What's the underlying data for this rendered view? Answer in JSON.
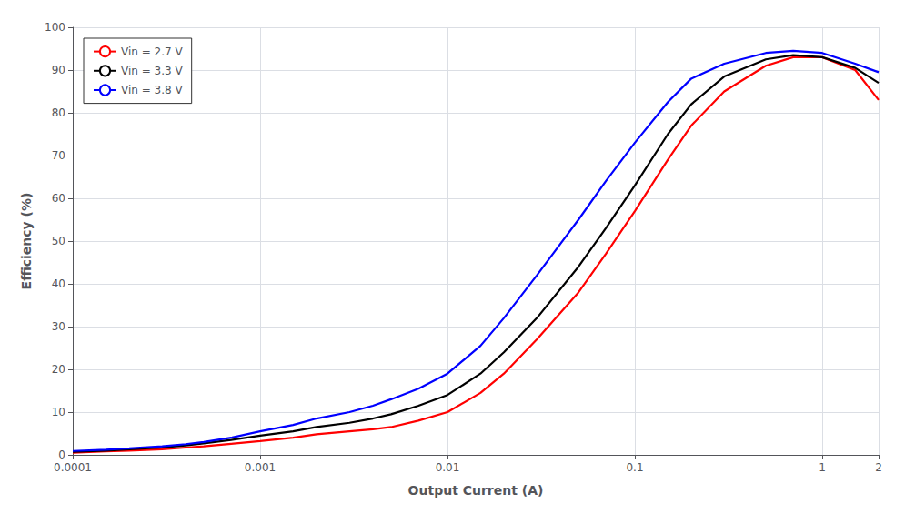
{
  "chart_data": {
    "type": "line",
    "xlabel": "Output Current (A)",
    "ylabel": "Efficiency (%)",
    "log": "x",
    "grid": true,
    "legend": "upper left",
    "xlim": [
      0.0001,
      2
    ],
    "ylim": [
      0,
      100
    ],
    "xticks": [
      0.0001,
      0.001,
      0.01,
      0.1,
      1,
      2
    ],
    "yticks": [
      0,
      10,
      20,
      30,
      40,
      50,
      60,
      70,
      80,
      90,
      100
    ],
    "x": [
      0.0001,
      0.00015,
      0.0002,
      0.0003,
      0.0004,
      0.0005,
      0.0007,
      0.001,
      0.0015,
      0.002,
      0.003,
      0.004,
      0.005,
      0.007,
      0.01,
      0.015,
      0.02,
      0.03,
      0.05,
      0.07,
      0.1,
      0.15,
      0.2,
      0.3,
      0.5,
      0.7,
      1.0,
      1.5,
      2.0
    ],
    "series": [
      {
        "name": "Vin = 2.7 V",
        "color": "red",
        "values": [
          0.5,
          0.8,
          1.0,
          1.3,
          1.7,
          2.0,
          2.6,
          3.2,
          4.0,
          4.8,
          5.5,
          6.0,
          6.5,
          8.0,
          10.0,
          14.5,
          19.0,
          27.0,
          38.0,
          47.0,
          57.0,
          69.0,
          77.0,
          85.0,
          91.0,
          93.0,
          93.0,
          90.0,
          83.0
        ]
      },
      {
        "name": "Vin = 3.3 V",
        "color": "black",
        "values": [
          0.7,
          1.0,
          1.3,
          1.7,
          2.2,
          2.7,
          3.5,
          4.5,
          5.5,
          6.5,
          7.5,
          8.5,
          9.5,
          11.5,
          14.0,
          19.0,
          24.0,
          32.0,
          44.0,
          53.0,
          63.0,
          75.0,
          82.0,
          88.5,
          92.5,
          93.5,
          93.0,
          90.5,
          87.0
        ]
      },
      {
        "name": "Vin = 3.8 V",
        "color": "blue",
        "values": [
          0.9,
          1.2,
          1.5,
          2.0,
          2.5,
          3.0,
          4.0,
          5.5,
          7.0,
          8.5,
          10.0,
          11.5,
          13.0,
          15.5,
          19.0,
          25.5,
          32.0,
          42.0,
          55.0,
          64.0,
          73.0,
          82.5,
          88.0,
          91.5,
          94.0,
          94.5,
          94.0,
          91.5,
          89.5
        ]
      }
    ]
  }
}
